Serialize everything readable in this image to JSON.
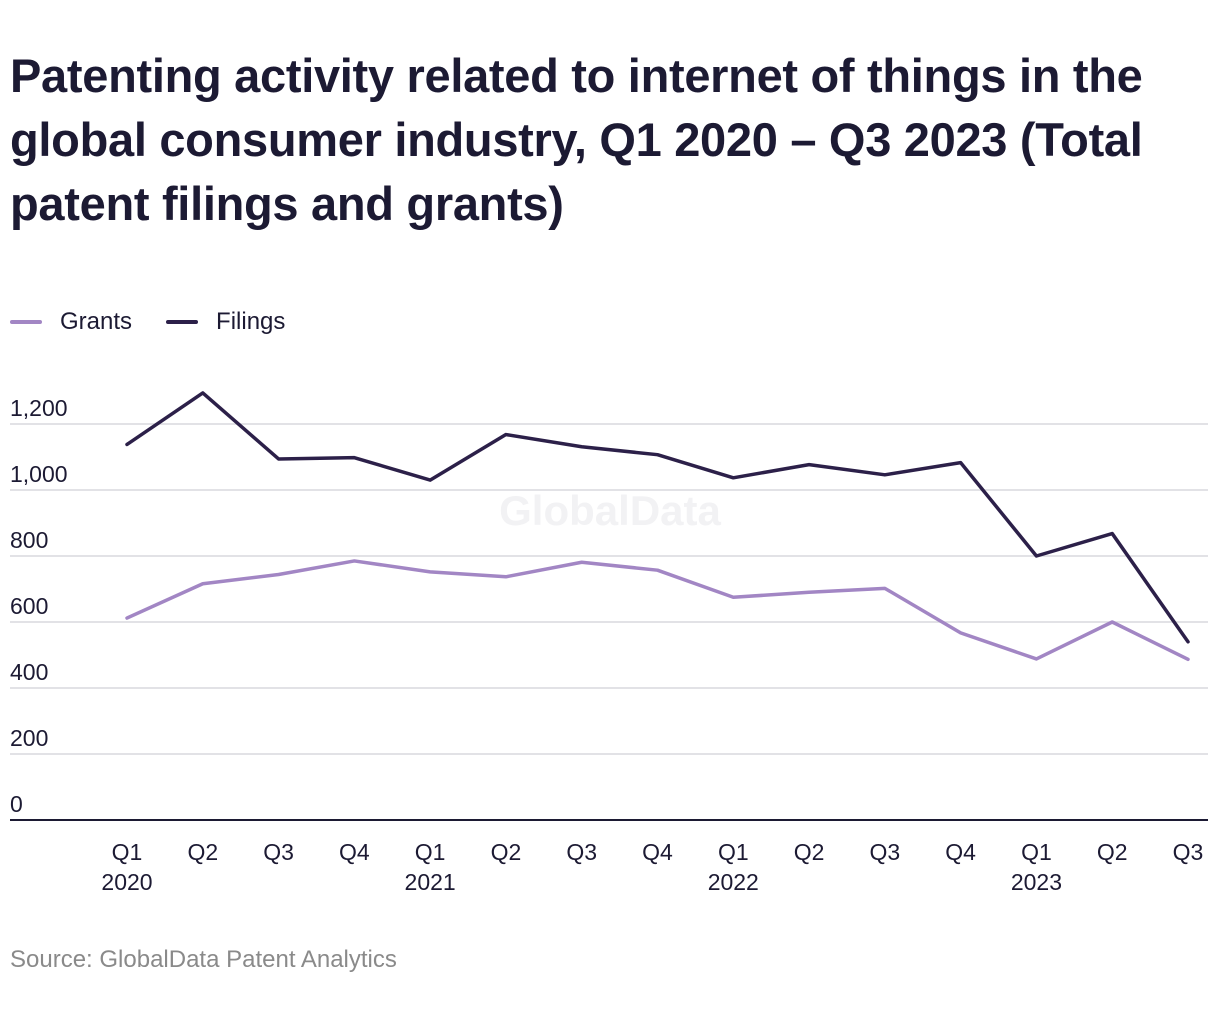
{
  "chart_data": {
    "type": "line",
    "title": "Patenting activity related to internet of things in the global consumer industry, Q1 2020 – Q3 2023 (Total patent filings and grants)",
    "categories": [
      "Q1 2020",
      "Q2 2020",
      "Q3 2020",
      "Q4 2020",
      "Q1 2021",
      "Q2 2021",
      "Q3 2021",
      "Q4 2021",
      "Q1 2022",
      "Q2 2022",
      "Q3 2022",
      "Q4 2022",
      "Q1 2023",
      "Q2 2023",
      "Q3 2023"
    ],
    "tick_labels": [
      {
        "quarter": "Q1",
        "year": "2020"
      },
      {
        "quarter": "Q2",
        "year": ""
      },
      {
        "quarter": "Q3",
        "year": ""
      },
      {
        "quarter": "Q4",
        "year": ""
      },
      {
        "quarter": "Q1",
        "year": "2021"
      },
      {
        "quarter": "Q2",
        "year": ""
      },
      {
        "quarter": "Q3",
        "year": ""
      },
      {
        "quarter": "Q4",
        "year": ""
      },
      {
        "quarter": "Q1",
        "year": "2022"
      },
      {
        "quarter": "Q2",
        "year": ""
      },
      {
        "quarter": "Q3",
        "year": ""
      },
      {
        "quarter": "Q4",
        "year": ""
      },
      {
        "quarter": "Q1",
        "year": "2023"
      },
      {
        "quarter": "Q2",
        "year": ""
      },
      {
        "quarter": "Q3",
        "year": ""
      }
    ],
    "series": [
      {
        "name": "Grants",
        "color": "#a286c4",
        "values": [
          612,
          716,
          744,
          785,
          752,
          737,
          781,
          757,
          675,
          690,
          702,
          567,
          488,
          600,
          487
        ]
      },
      {
        "name": "Filings",
        "color": "#2c2049",
        "values": [
          1138,
          1294,
          1094,
          1098,
          1030,
          1168,
          1131,
          1107,
          1037,
          1077,
          1046,
          1083,
          800,
          868,
          540
        ]
      }
    ],
    "y_ticks": [
      "0",
      "200",
      "400",
      "600",
      "800",
      "1,000",
      "1,200"
    ],
    "ylim": [
      0,
      1200
    ],
    "grid": true,
    "legend": "top-left",
    "watermark": "GlobalData",
    "source": "Source: GlobalData Patent Analytics"
  }
}
